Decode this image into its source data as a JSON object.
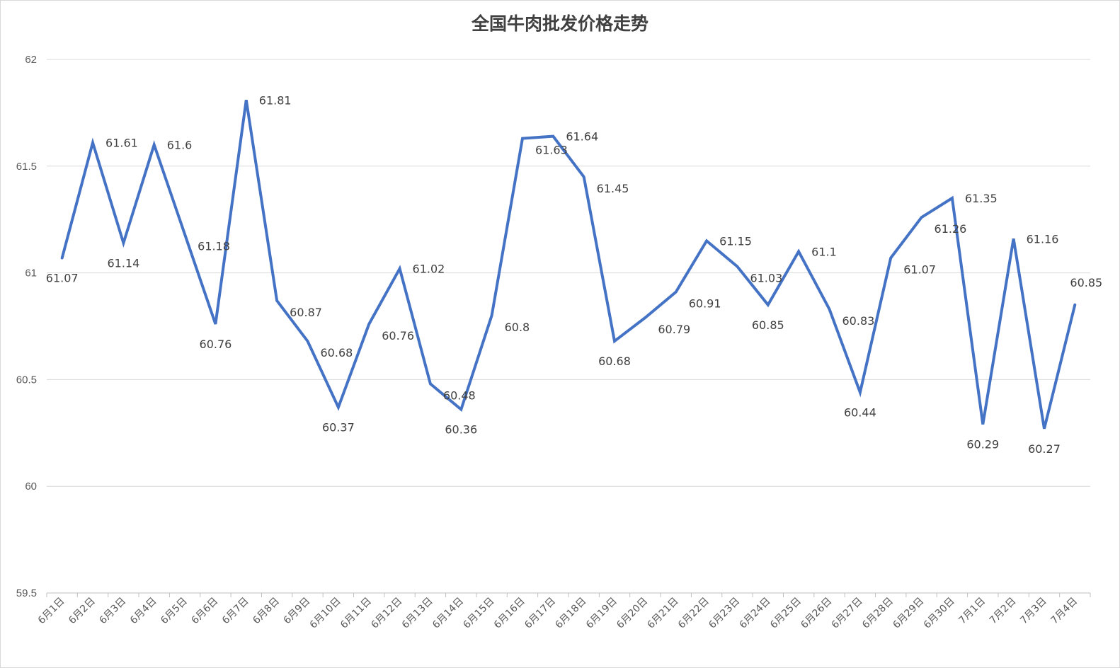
{
  "chart_data": {
    "type": "line",
    "title": "全国牛肉批发价格走势",
    "xlabel": "",
    "ylabel": "",
    "ylim": [
      59.5,
      62
    ],
    "yticks": [
      "59.5",
      "60",
      "60.5",
      "61",
      "61.5",
      "62"
    ],
    "grid": true,
    "legend": "none",
    "categories": [
      "6月1日",
      "6月2日",
      "6月3日",
      "6月4日",
      "6月5日",
      "6月6日",
      "6月7日",
      "6月8日",
      "6月9日",
      "6月10日",
      "6月11日",
      "6月12日",
      "6月13日",
      "6月14日",
      "6月15日",
      "6月16日",
      "6月17日",
      "6月18日",
      "6月19日",
      "6月20日",
      "6月21日",
      "6月22日",
      "6月23日",
      "6月24日",
      "6月25日",
      "6月26日",
      "6月27日",
      "6月28日",
      "6月29日",
      "6月30日",
      "7月1日",
      "7月2日",
      "7月3日",
      "7月4日"
    ],
    "series": [
      {
        "color": "#4472c4",
        "values": [
          61.07,
          61.61,
          61.14,
          61.6,
          61.18,
          60.76,
          61.81,
          60.87,
          60.68,
          60.37,
          60.76,
          61.02,
          60.48,
          60.36,
          60.8,
          61.63,
          61.64,
          61.45,
          60.68,
          60.79,
          60.91,
          61.15,
          61.03,
          60.85,
          61.1,
          60.83,
          60.44,
          61.07,
          61.26,
          61.35,
          60.29,
          61.16,
          60.27,
          60.85
        ],
        "labels": [
          "61.07",
          "61.61",
          "61.14",
          "61.6",
          "61.18",
          "60.76",
          "61.81",
          "60.87",
          "60.68",
          "60.37",
          "60.76",
          "61.02",
          "60.48",
          "60.36",
          "60.8",
          "61.63",
          "61.64",
          "61.45",
          "60.68",
          "60.79",
          "60.91",
          "61.15",
          "61.03",
          "60.85",
          "61.1",
          "60.83",
          "60.44",
          "61.07",
          "61.26",
          "61.35",
          "60.29",
          "61.16",
          "60.27",
          "60.85"
        ]
      }
    ]
  }
}
